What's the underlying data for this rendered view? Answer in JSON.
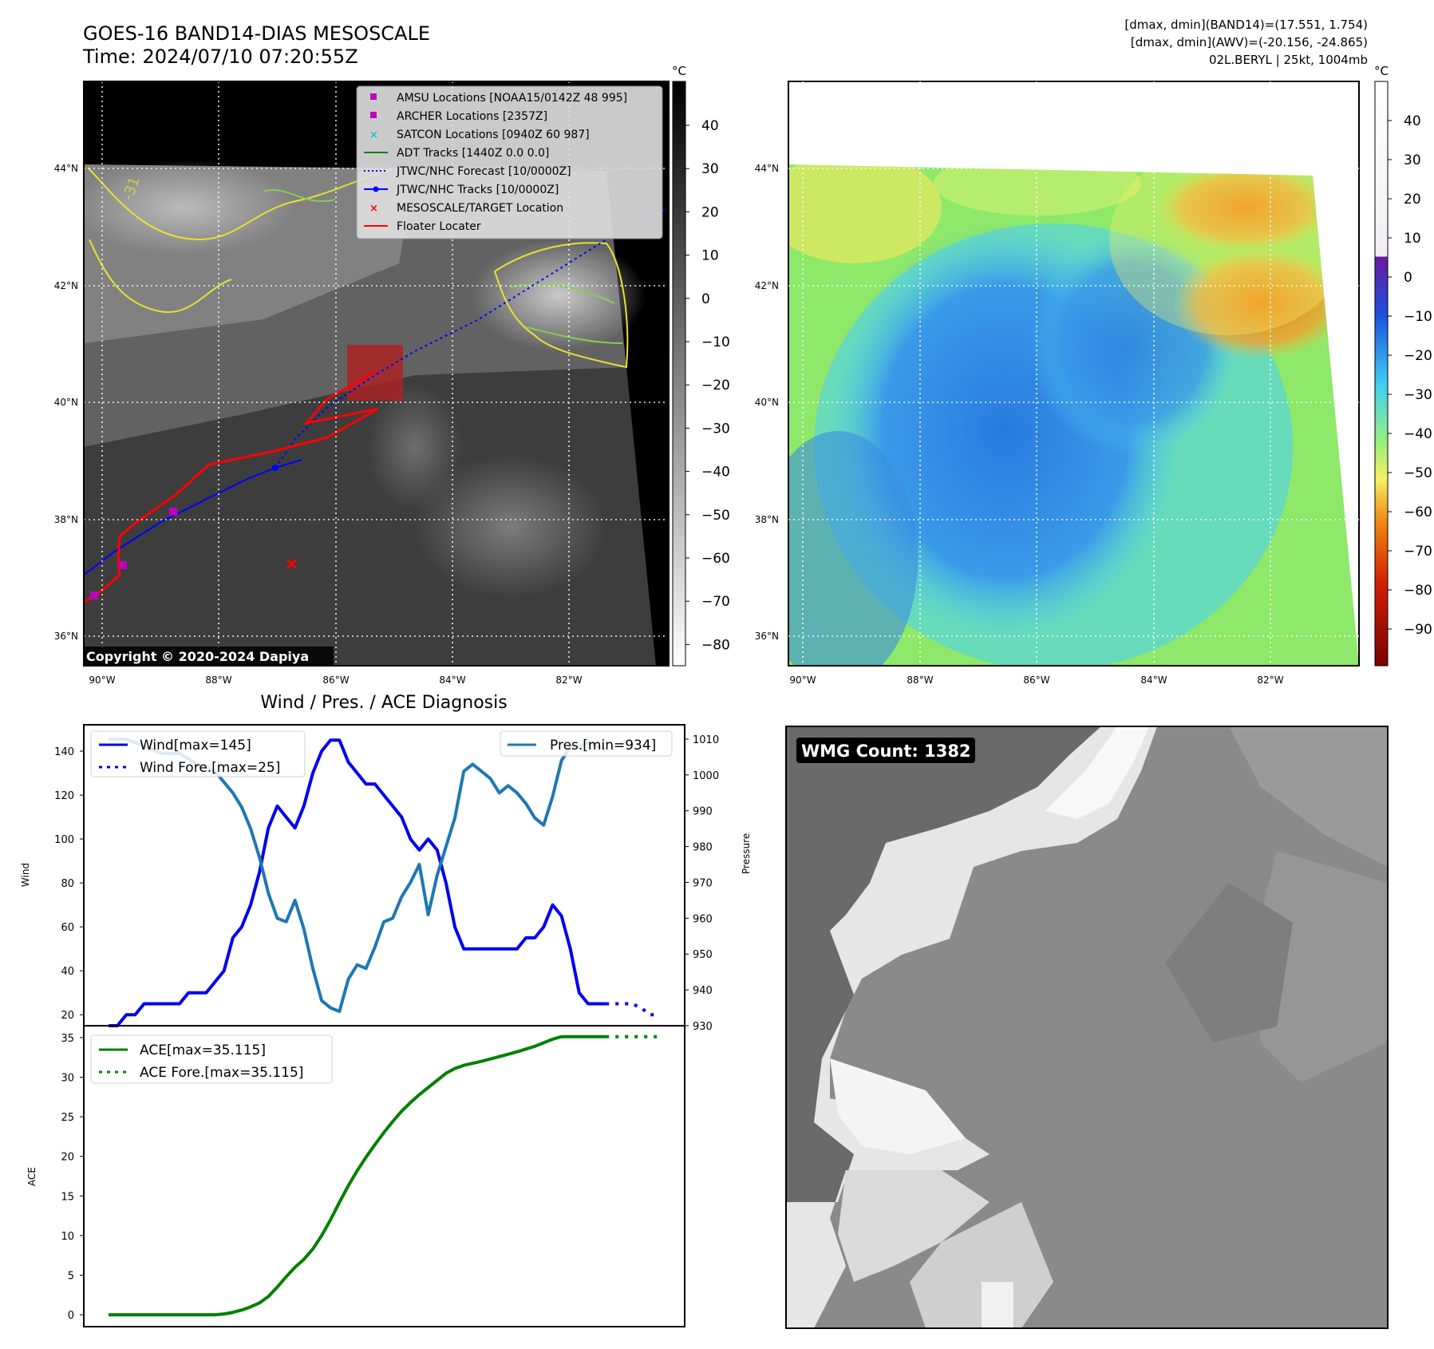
{
  "header": {
    "title": "GOES-16 BAND14-DIAS MESOSCALE",
    "time": "Time: 2024/07/10 07:20:55Z",
    "info_lines": [
      "[dmax, dmin](BAND14)=(17.551, 1.754)",
      "[dmax, dmin](AWV)=(-20.156, -24.865)",
      "02L.BERYL | 25kt, 1004mb"
    ]
  },
  "map_axes": {
    "lat_labels": [
      "44°N",
      "42°N",
      "40°N",
      "38°N",
      "36°N"
    ],
    "lon_labels": [
      "90°W",
      "88°W",
      "86°W",
      "84°W",
      "82°W"
    ],
    "contour_label": "-31",
    "copyright": "Copyright © 2020-2024 Dapiya"
  },
  "ir_colorbar": {
    "unit": "°C",
    "ticks": [
      "40",
      "30",
      "20",
      "10",
      "0",
      "−10",
      "−20",
      "−30",
      "−40",
      "−50",
      "−60",
      "−70",
      "−80"
    ]
  },
  "wv_colorbar": {
    "unit": "°C",
    "ticks": [
      "40",
      "30",
      "20",
      "10",
      "0",
      "−10",
      "−20",
      "−30",
      "−40",
      "−50",
      "−60",
      "−70",
      "−80",
      "−90"
    ]
  },
  "map_legend": {
    "items": [
      {
        "label": "AMSU Locations [NOAA15/0142Z 48 995]",
        "marker": "square",
        "color": "#bf00bf"
      },
      {
        "label": "ARCHER Locations [2357Z]",
        "marker": "square",
        "color": "#bf00bf"
      },
      {
        "label": "SATCON Locations [0940Z 60 987]",
        "marker": "x",
        "color": "#17becf"
      },
      {
        "label": "ADT Tracks [1440Z 0.0 0.0]",
        "marker": "line",
        "color": "#008000"
      },
      {
        "label": "JTWC/NHC Forecast [10/0000Z]",
        "marker": "dotted",
        "color": "#0000ff"
      },
      {
        "label": "JTWC/NHC Tracks [10/0000Z]",
        "marker": "line-dot",
        "color": "#0000ff"
      },
      {
        "label": "MESOSCALE/TARGET Location",
        "marker": "x",
        "color": "#ff0000"
      },
      {
        "label": "Floater Locater",
        "marker": "line",
        "color": "#ff0000"
      }
    ]
  },
  "wmg_label": "WMG Count: 1382",
  "colors": {
    "wind": "#0000ee",
    "pres": "#1f77b4",
    "ace": "#008000",
    "track_red": "#ff0000",
    "legend_magenta": "#bf00bf",
    "legend_cyan": "#17becf"
  },
  "chart_data": {
    "type": "line",
    "title": "Wind / Pres. / ACE Diagnosis",
    "wind_panel": {
      "ylabel_left": "Wind",
      "ylabel_right": "Pressure",
      "ylim_left": [
        15,
        152
      ],
      "ylim_right": [
        930,
        1014
      ],
      "yticks_left": [
        20,
        40,
        60,
        80,
        100,
        120,
        140
      ],
      "yticks_right": [
        930,
        940,
        950,
        960,
        970,
        980,
        990,
        1000,
        1010
      ],
      "legend_left": [
        "Wind[max=145]",
        "Wind Fore.[max=25]"
      ],
      "legend_right": [
        "Pres.[min=934]"
      ],
      "series": [
        {
          "name": "Wind[max=145]",
          "axis": "left",
          "style": "solid",
          "x": [
            0,
            1,
            2,
            3,
            4,
            5,
            6,
            7,
            8,
            9,
            10,
            11,
            12,
            13,
            14,
            15,
            16,
            17,
            18,
            19,
            20,
            21,
            22,
            23,
            24,
            25,
            26,
            27,
            28,
            29,
            30,
            31,
            32,
            33,
            34,
            35,
            36,
            37,
            38,
            39,
            40,
            41,
            42,
            43,
            44,
            45,
            46,
            47,
            48,
            49,
            50,
            51,
            52,
            53,
            54,
            55,
            56
          ],
          "values": [
            15,
            15,
            20,
            20,
            25,
            25,
            25,
            25,
            25,
            30,
            30,
            30,
            35,
            40,
            55,
            60,
            70,
            85,
            105,
            115,
            110,
            105,
            115,
            130,
            140,
            145,
            145,
            135,
            130,
            125,
            125,
            120,
            115,
            110,
            100,
            95,
            100,
            95,
            80,
            60,
            50,
            50,
            50,
            50,
            50,
            50,
            50,
            55,
            55,
            60,
            70,
            65,
            50,
            30,
            25,
            25,
            25
          ]
        },
        {
          "name": "Wind Fore.[max=25]",
          "axis": "left",
          "style": "dotted",
          "x": [
            56,
            57,
            58,
            59,
            60,
            61,
            62
          ],
          "values": [
            25,
            25,
            25,
            25,
            23,
            20,
            20
          ]
        },
        {
          "name": "Pres.[min=934]",
          "axis": "right",
          "style": "solid",
          "x": [
            0,
            2,
            4,
            6,
            8,
            10,
            12,
            14,
            15,
            16,
            17,
            18,
            19,
            20,
            21,
            22,
            23,
            24,
            25,
            26,
            27,
            28,
            29,
            30,
            31,
            32,
            33,
            34,
            35,
            36,
            37,
            38,
            39,
            40,
            41,
            42,
            43,
            44,
            45,
            46,
            47,
            48,
            49,
            50,
            51,
            52,
            53,
            54,
            55,
            56
          ],
          "values": [
            1010,
            1010,
            1008,
            1006,
            1006,
            1003,
            1001,
            995,
            991,
            985,
            977,
            967,
            960,
            959,
            965,
            957,
            946,
            937,
            935,
            934,
            943,
            947,
            946,
            952,
            959,
            960,
            966,
            970,
            975,
            961,
            972,
            980,
            988,
            1001,
            1003,
            1001,
            999,
            995,
            997,
            995,
            992,
            988,
            986,
            994,
            1004,
            1008,
            1008,
            1009,
            1008,
            1007
          ]
        }
      ]
    },
    "ace_panel": {
      "ylabel": "ACE",
      "ylim": [
        -1.5,
        36.5
      ],
      "yticks": [
        0,
        5,
        10,
        15,
        20,
        25,
        30,
        35
      ],
      "legend": [
        "ACE[max=35.115]",
        "ACE Fore.[max=35.115]"
      ],
      "series": [
        {
          "name": "ACE[max=35.115]",
          "style": "solid",
          "x": [
            0,
            4,
            8,
            10,
            12,
            13,
            14,
            15,
            16,
            17,
            18,
            19,
            20,
            21,
            22,
            23,
            24,
            25,
            26,
            27,
            28,
            29,
            30,
            31,
            32,
            33,
            34,
            35,
            36,
            37,
            38,
            39,
            40,
            42,
            44,
            46,
            48,
            50,
            51,
            52,
            54,
            56
          ],
          "values": [
            0,
            0,
            0,
            0,
            0,
            0.1,
            0.3,
            0.6,
            1.0,
            1.5,
            2.3,
            3.5,
            4.8,
            6.0,
            7.0,
            8.3,
            10.0,
            12.0,
            14.2,
            16.3,
            18.2,
            19.9,
            21.5,
            23.0,
            24.4,
            25.7,
            26.8,
            27.8,
            28.7,
            29.6,
            30.5,
            31.1,
            31.5,
            32.0,
            32.6,
            33.2,
            33.9,
            34.8,
            35.115,
            35.115,
            35.115,
            35.115
          ]
        },
        {
          "name": "ACE Fore.[max=35.115]",
          "style": "dotted",
          "x": [
            56,
            62
          ],
          "values": [
            35.115,
            35.115
          ]
        }
      ]
    }
  }
}
